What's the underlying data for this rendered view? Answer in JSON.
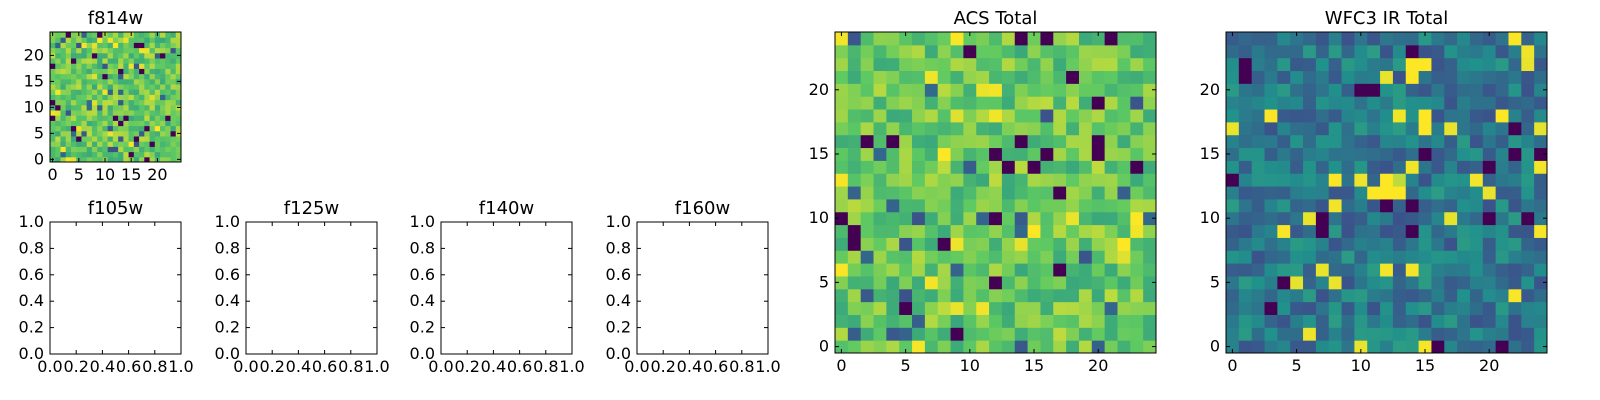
{
  "figure": {
    "background": "#ffffff"
  },
  "colormap": [
    "#440154",
    "#3b528b",
    "#21918c",
    "#5ec962",
    "#fde725"
  ],
  "chart_data": [
    {
      "type": "heatmap",
      "title": "f814w",
      "grid_size": 25,
      "extent": [
        -0.5,
        24.5,
        -0.5,
        24.5
      ],
      "xticks": [
        0,
        5,
        10,
        15,
        20
      ],
      "yticks": [
        0,
        5,
        10,
        15,
        20
      ],
      "value_scale": "normalized 0-1",
      "typical_value": 0.75,
      "seed": 11
    },
    {
      "type": "empty",
      "title": "f105w",
      "xlim": [
        0,
        1
      ],
      "ylim": [
        0,
        1
      ],
      "xticks": [
        "0.0",
        "0.2",
        "0.4",
        "0.6",
        "0.8",
        "1.0"
      ],
      "yticks": [
        "0.0",
        "0.2",
        "0.4",
        "0.6",
        "0.8",
        "1.0"
      ]
    },
    {
      "type": "empty",
      "title": "f125w",
      "xlim": [
        0,
        1
      ],
      "ylim": [
        0,
        1
      ],
      "xticks": [
        "0.0",
        "0.2",
        "0.4",
        "0.6",
        "0.8",
        "1.0"
      ],
      "yticks": [
        "0.0",
        "0.2",
        "0.4",
        "0.6",
        "0.8",
        "1.0"
      ]
    },
    {
      "type": "empty",
      "title": "f140w",
      "xlim": [
        0,
        1
      ],
      "ylim": [
        0,
        1
      ],
      "xticks": [
        "0.0",
        "0.2",
        "0.4",
        "0.6",
        "0.8",
        "1.0"
      ],
      "yticks": [
        "0.0",
        "0.2",
        "0.4",
        "0.6",
        "0.8",
        "1.0"
      ]
    },
    {
      "type": "empty",
      "title": "f160w",
      "xlim": [
        0,
        1
      ],
      "ylim": [
        0,
        1
      ],
      "xticks": [
        "0.0",
        "0.2",
        "0.4",
        "0.6",
        "0.8",
        "1.0"
      ],
      "yticks": [
        "0.0",
        "0.2",
        "0.4",
        "0.6",
        "0.8",
        "1.0"
      ]
    },
    {
      "type": "heatmap",
      "title": "ACS Total",
      "grid_size": 25,
      "extent": [
        -0.5,
        24.5,
        -0.5,
        24.5
      ],
      "xticks": [
        0,
        5,
        10,
        15,
        20
      ],
      "yticks": [
        0,
        5,
        10,
        15,
        20
      ],
      "value_scale": "normalized 0-1",
      "typical_value": 0.75,
      "seed": 23
    },
    {
      "type": "heatmap",
      "title": "WFC3 IR Total",
      "grid_size": 25,
      "extent": [
        -0.5,
        24.5,
        -0.5,
        24.5
      ],
      "xticks": [
        0,
        5,
        10,
        15,
        20
      ],
      "yticks": [
        0,
        5,
        10,
        15,
        20
      ],
      "value_scale": "normalized 0-1",
      "typical_value": 0.4,
      "seed": 37,
      "hotspots": [
        {
          "x": 11,
          "y": 12,
          "value": 1.0
        },
        {
          "x": 12,
          "y": 12,
          "value": 1.0
        },
        {
          "x": 12,
          "y": 13,
          "value": 1.0
        },
        {
          "x": 13,
          "y": 12,
          "value": 1.0
        },
        {
          "x": 13,
          "y": 13,
          "value": 0.9
        },
        {
          "x": 14,
          "y": 22,
          "value": 1.0
        },
        {
          "x": 15,
          "y": 22,
          "value": 1.0
        },
        {
          "x": 14,
          "y": 21,
          "value": 1.0
        },
        {
          "x": 15,
          "y": 18,
          "value": 1.0
        },
        {
          "x": 15,
          "y": 17,
          "value": 1.0
        }
      ]
    }
  ]
}
